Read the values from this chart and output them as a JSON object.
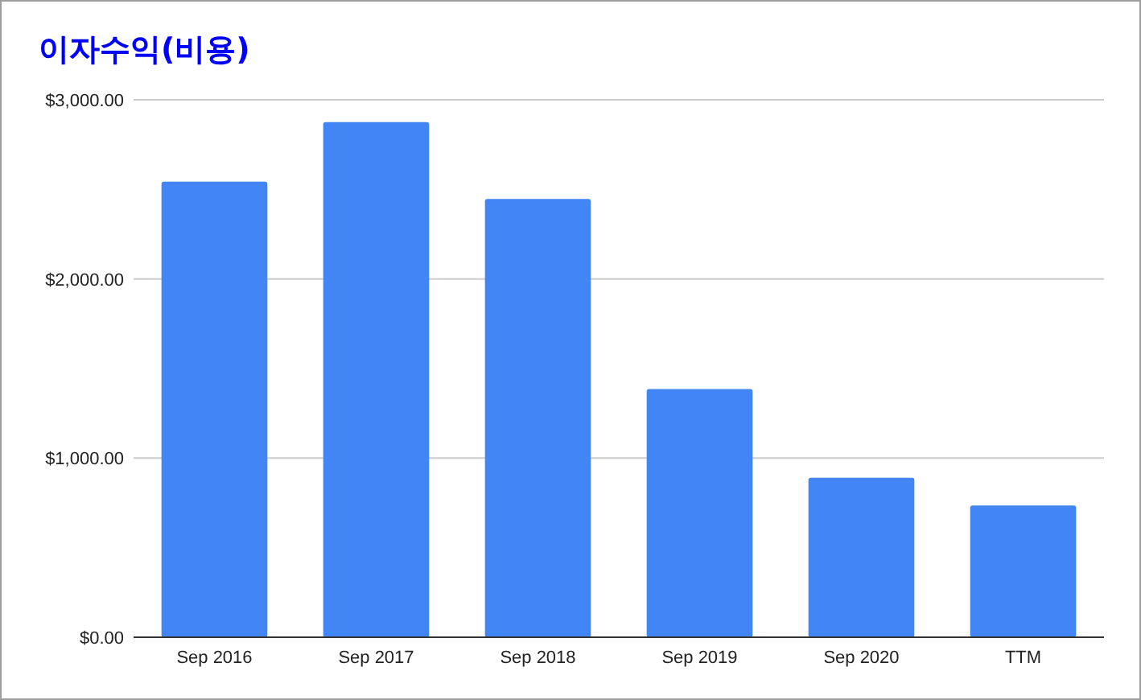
{
  "chart_data": {
    "type": "bar",
    "title": "이자수익(비용)",
    "categories": [
      "Sep 2016",
      "Sep 2017",
      "Sep 2018",
      "Sep 2019",
      "Sep 2020",
      "TTM"
    ],
    "values": [
      2543,
      2875,
      2446,
      1386,
      890,
      735
    ],
    "color": "#4285f4",
    "ylim": [
      0,
      3000
    ],
    "yticks": [
      {
        "value": 0,
        "label": "$0.00"
      },
      {
        "value": 1000,
        "label": "$1,000.00"
      },
      {
        "value": 2000,
        "label": "$2,000.00"
      },
      {
        "value": 3000,
        "label": "$3,000.00"
      }
    ],
    "grid": "y"
  }
}
